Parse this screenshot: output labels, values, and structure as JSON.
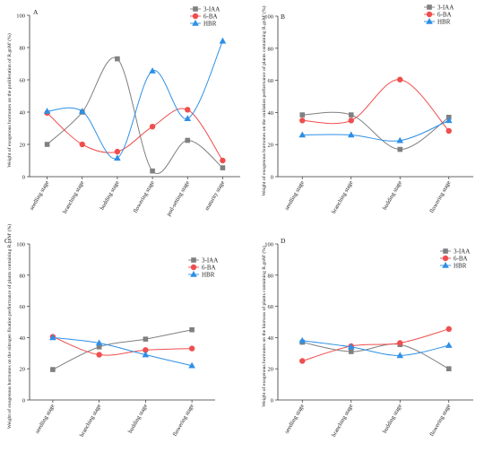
{
  "panels": [
    {
      "panel_label": "A",
      "ylabel": "Weight of exogenous hormones on the proliferation of R.gnM' (%)",
      "legend": [
        "3-IAA",
        "6-BA",
        "HBR"
      ]
    },
    {
      "panel_label": "B",
      "ylabel": "Weight of exogenous hormones on the oxidation performance of plants containing R.gnM' (%)",
      "legend": [
        "3-IAA",
        "6-BA",
        "HBR"
      ]
    },
    {
      "panel_label": "C",
      "ylabel": "Weight of exogenous hormones on the nitrogen fixation performance of plants containing R.gnM' (%)",
      "legend": [
        "3-IAA",
        "6-BA",
        "HBR"
      ]
    },
    {
      "panel_label": "D",
      "ylabel": "Weight of exogenous hormones on the biomass of plants containing R.gnM' (%)",
      "legend": [
        "3-IAA",
        "6-BA",
        "HBR"
      ]
    }
  ],
  "colors": {
    "3-IAA": "#808080",
    "6-BA": "#f04e4e",
    "HBR": "#2e8fe6"
  },
  "markers": {
    "3-IAA": "square",
    "6-BA": "circle",
    "HBR": "triangle"
  },
  "chart_data": [
    {
      "type": "line",
      "title": "A",
      "categories": [
        "seedling stage",
        "branching stage",
        "budding stage",
        "flowering stage",
        "pod-setting stage",
        "maturity stage"
      ],
      "ylim": [
        0,
        100
      ],
      "yticks": [
        0,
        20,
        40,
        60,
        80,
        100
      ],
      "grid": false,
      "legend_position": "top-right",
      "series": [
        {
          "name": "3-IAA",
          "values": [
            20,
            40,
            73,
            3.5,
            22.5,
            5.5
          ]
        },
        {
          "name": "6-BA",
          "values": [
            39.5,
            20,
            15.5,
            31,
            41.5,
            10
          ]
        },
        {
          "name": "HBR",
          "values": [
            40.5,
            40.5,
            11.5,
            65.5,
            36,
            84
          ]
        }
      ]
    },
    {
      "type": "line",
      "title": "B",
      "categories": [
        "seedling stage",
        "branching stage",
        "budding stage",
        "flowering stage"
      ],
      "ylim": [
        0,
        100
      ],
      "yticks": [
        0,
        20,
        40,
        60,
        80,
        100
      ],
      "grid": false,
      "legend_position": "top-right",
      "series": [
        {
          "name": "3-IAA",
          "values": [
            38.5,
            38.5,
            17,
            37
          ]
        },
        {
          "name": "6-BA",
          "values": [
            35,
            35,
            60.5,
            28.5
          ]
        },
        {
          "name": "HBR",
          "values": [
            26,
            26,
            22.5,
            35
          ]
        }
      ]
    },
    {
      "type": "line",
      "title": "C",
      "categories": [
        "seedling stage",
        "branching stage",
        "budding stage",
        "flowering stage"
      ],
      "ylim": [
        0,
        100
      ],
      "yticks": [
        0,
        20,
        40,
        60,
        80,
        100
      ],
      "grid": false,
      "legend_position": "top-right",
      "series": [
        {
          "name": "3-IAA",
          "values": [
            19.5,
            34,
            39,
            45
          ]
        },
        {
          "name": "6-BA",
          "values": [
            40.5,
            29,
            32,
            33
          ]
        },
        {
          "name": "HBR",
          "values": [
            40,
            36.5,
            29,
            22
          ]
        }
      ]
    },
    {
      "type": "line",
      "title": "D",
      "categories": [
        "seedling stage",
        "branching stage",
        "budding stage",
        "flowering stage"
      ],
      "ylim": [
        0,
        100
      ],
      "yticks": [
        0,
        20,
        40,
        60,
        80,
        100
      ],
      "grid": false,
      "legend_position": "top-right",
      "series": [
        {
          "name": "3-IAA",
          "values": [
            37,
            31,
            35.5,
            20
          ]
        },
        {
          "name": "6-BA",
          "values": [
            25,
            34.5,
            36.5,
            45.5
          ]
        },
        {
          "name": "HBR",
          "values": [
            38,
            34,
            28.5,
            35
          ]
        }
      ]
    }
  ]
}
